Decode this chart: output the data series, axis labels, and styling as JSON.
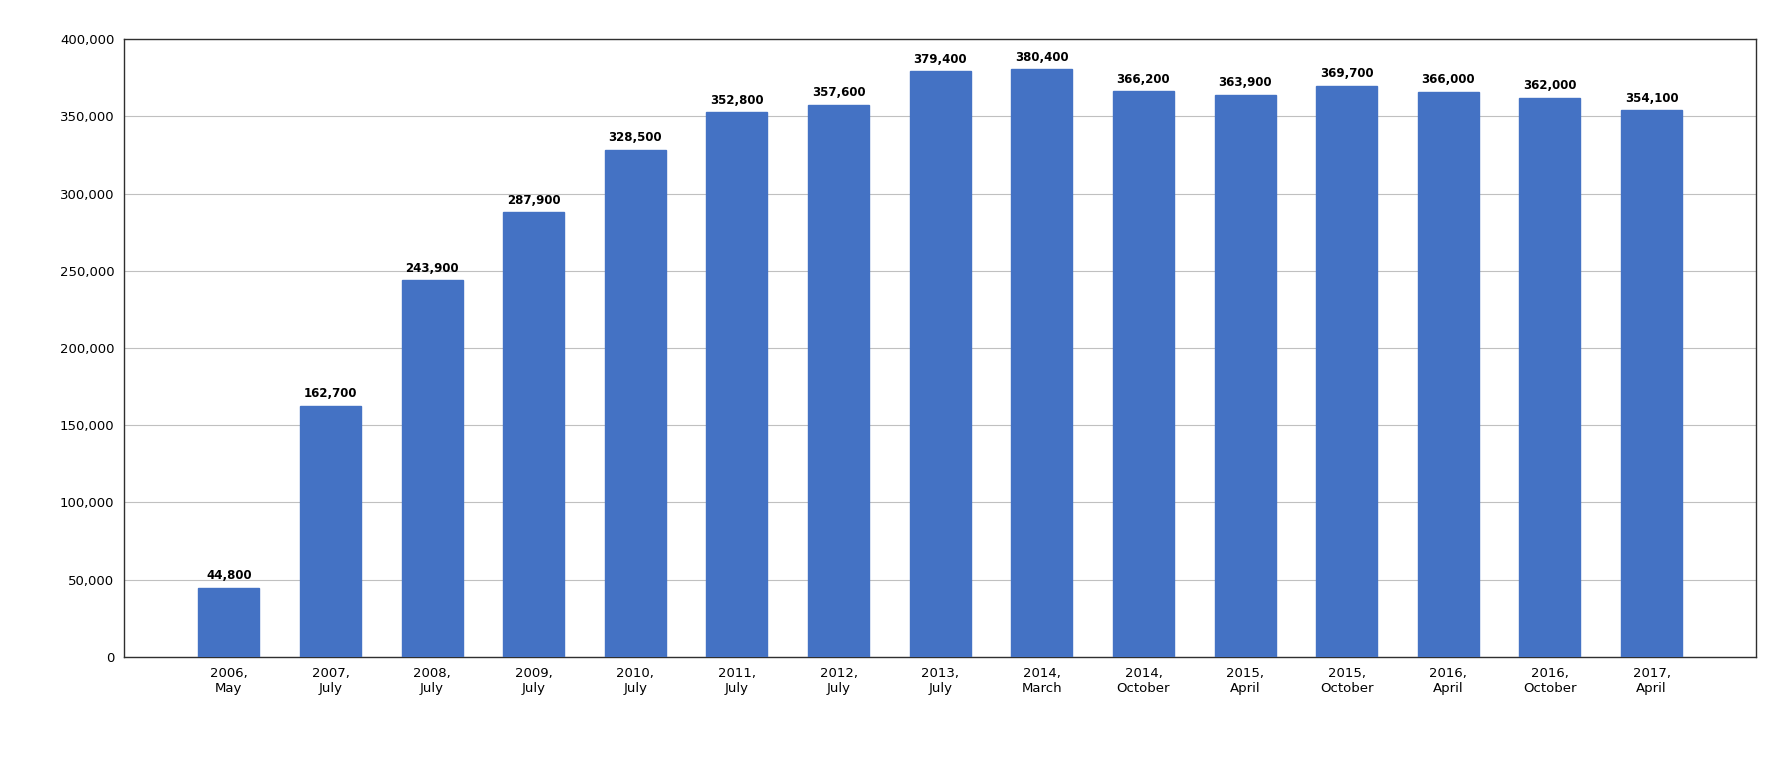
{
  "categories": [
    "2006,\nMay",
    "2007,\nJuly",
    "2008,\nJuly",
    "2009,\nJuly",
    "2010,\nJuly",
    "2011,\nJuly",
    "2012,\nJuly",
    "2013,\nJuly",
    "2014,\nMarch",
    "2014,\nOctober",
    "2015,\nApril",
    "2015,\nOctober",
    "2016,\nApril",
    "2016,\nOctober",
    "2017,\nApril"
  ],
  "values": [
    44800,
    162700,
    243900,
    287900,
    328500,
    352800,
    357600,
    379400,
    380400,
    366200,
    363900,
    369700,
    366000,
    362000,
    354100
  ],
  "labels": [
    "44,800",
    "162,700",
    "243,900",
    "287,900",
    "328,500",
    "352,800",
    "357,600",
    "379,400",
    "380,400",
    "366,200",
    "363,900",
    "369,700",
    "366,000",
    "362,000",
    "354,100"
  ],
  "bar_color": "#4472C4",
  "ylim": [
    0,
    400000
  ],
  "yticks": [
    0,
    50000,
    100000,
    150000,
    200000,
    250000,
    300000,
    350000,
    400000
  ],
  "ytick_labels": [
    "0",
    "50,000",
    "100,000",
    "150,000",
    "200,000",
    "250,000",
    "300,000",
    "350,000",
    "400,000"
  ],
  "background_color": "#ffffff",
  "plot_bg_color": "#ffffff",
  "grid_color": "#c0c0c0",
  "bar_label_fontsize": 8.5,
  "tick_label_fontsize": 9.5
}
